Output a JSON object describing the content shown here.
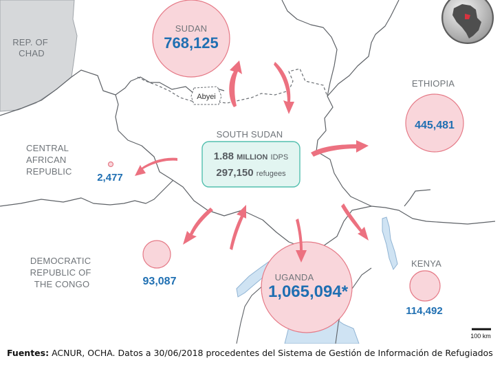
{
  "countries": {
    "chad": [
      "REP. OF",
      "CHAD"
    ],
    "car": [
      "CENTRAL",
      "AFRICAN",
      "REPUBLIC"
    ],
    "drc": [
      "DEMOCRATIC",
      "REPUBLIC OF",
      "THE CONGO"
    ],
    "sudan": "SUDAN",
    "ethiopia": "ETHIOPIA",
    "south_sudan": "SOUTH SUDAN",
    "uganda": "UGANDA",
    "kenya": "KENYA",
    "abyei": "Abyei"
  },
  "refugees": {
    "sudan": "768,125",
    "ethiopia": "445,481",
    "car": "2,477",
    "drc": "93,087",
    "uganda": "1,065,094*",
    "kenya": "114,492"
  },
  "center_box": {
    "idps_value": "1.88",
    "idps_million": "MILLION",
    "idps_unit": "IDPS",
    "refugees_value": "297,150",
    "refugees_unit": "refugees"
  },
  "scale_bar": "100 km",
  "footer": {
    "label": "Fuentes:",
    "text": " ACNUR, OCHA. Datos a 30/06/2018 procedentes del Sistema de Gestión de Información de Refugiados"
  },
  "colors": {
    "circle_fill": "#f9d6db",
    "circle_stroke": "#e57986",
    "arrow": "#ec7180",
    "value_text": "#1f6fb2",
    "box_fill": "#e2f5f1",
    "box_stroke": "#52bfae",
    "chad_fill": "#d6d8da",
    "water": "#cfe3f3"
  }
}
